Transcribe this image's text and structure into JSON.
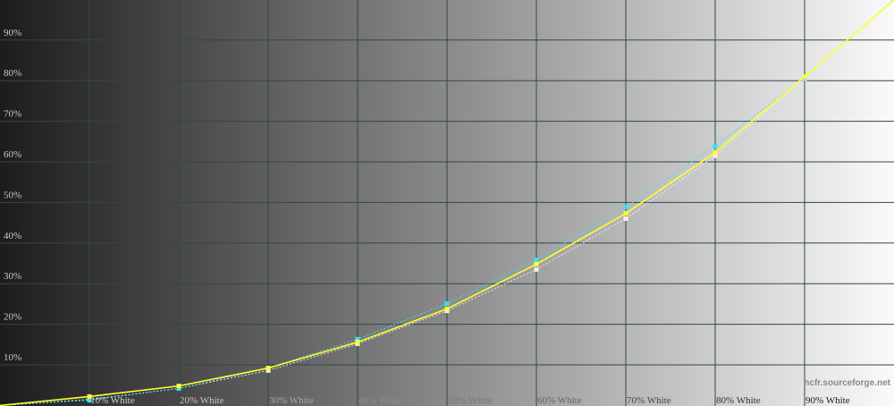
{
  "chart_data": {
    "type": "line",
    "title": "",
    "xlabel": "",
    "ylabel": "",
    "x": [
      0,
      10,
      20,
      30,
      40,
      50,
      60,
      70,
      80,
      90,
      100
    ],
    "x_tick_labels": [
      "10% White",
      "20% White",
      "30% White",
      "40% White",
      "50% White",
      "60% White",
      "70% White",
      "80% White",
      "90% White"
    ],
    "y_tick_labels": [
      "10%",
      "20%",
      "30%",
      "40%",
      "50%",
      "60%",
      "70%",
      "80%",
      "90%"
    ],
    "xlim": [
      0,
      100
    ],
    "ylim": [
      0,
      100
    ],
    "grid": true,
    "background": "horizontal grayscale gradient from black to white",
    "series": [
      {
        "color": "#ffff33",
        "style": "solid",
        "values": [
          0,
          2.2,
          4.8,
          9.2,
          15.6,
          23.8,
          34.8,
          47.3,
          62.3,
          81.0,
          99.8
        ]
      },
      {
        "color": "#33e6f0",
        "style": "dotted",
        "values": [
          0,
          1.3,
          4.2,
          9.2,
          16.3,
          25.1,
          35.9,
          48.9,
          63.9,
          80.8,
          100
        ]
      },
      {
        "color": "#f0f0f0",
        "style": "dotted",
        "values": [
          0,
          1.5,
          4.2,
          8.6,
          15.2,
          23.3,
          33.5,
          46.0,
          61.5,
          80.5,
          100
        ]
      }
    ],
    "watermark": "hcfr.sourceforge.net"
  }
}
